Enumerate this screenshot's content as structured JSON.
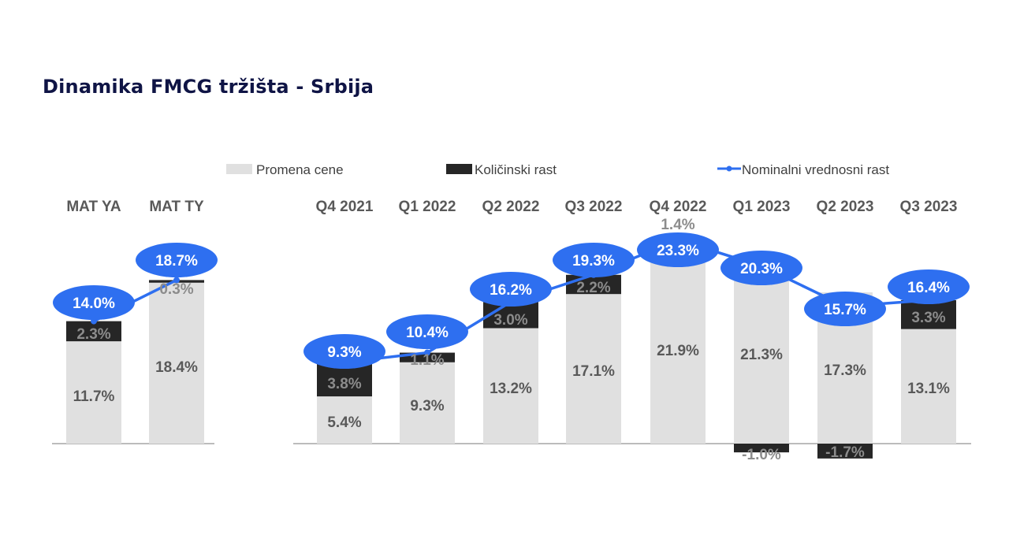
{
  "chart_data": {
    "type": "bar",
    "title": "Dinamika FMCG tržišta - Srbija",
    "xlabel": "",
    "ylabel": "",
    "stacked": true,
    "grid": false,
    "legend_position": "top",
    "categories": [
      "MAT YA",
      "MAT TY",
      "Q4 2021",
      "Q1 2022",
      "Q2 2022",
      "Q3 2022",
      "Q4 2022",
      "Q1 2023",
      "Q2 2023",
      "Q3 2023"
    ],
    "series": [
      {
        "name": "Promena cene",
        "kind": "bar",
        "color": "#e0e0e0",
        "values": [
          11.7,
          18.4,
          5.4,
          9.3,
          13.2,
          17.1,
          21.9,
          21.3,
          17.3,
          13.1
        ],
        "labels": [
          "11.7%",
          "18.4%",
          "5.4%",
          "9.3%",
          "13.2%",
          "17.1%",
          "21.9%",
          "21.3%",
          "17.3%",
          "13.1%"
        ]
      },
      {
        "name": "Količinski rast",
        "kind": "bar",
        "color": "#262626",
        "values": [
          2.3,
          0.3,
          3.8,
          1.1,
          3.0,
          2.2,
          1.4,
          -1.0,
          -1.7,
          3.3
        ],
        "labels": [
          "2.3%",
          "0.3%",
          "3.8%",
          "1.1%",
          "3.0%",
          "2.2%",
          "1.4%",
          "-1.0%",
          "-1.7%",
          "3.3%"
        ]
      },
      {
        "name": "Nominalni vrednosni rast",
        "kind": "line",
        "color": "#2e6ff0",
        "values": [
          14.0,
          18.7,
          9.3,
          10.4,
          16.2,
          19.3,
          23.3,
          20.3,
          15.7,
          16.4
        ],
        "labels": [
          "14.0%",
          "18.7%",
          "9.3%",
          "10.4%",
          "16.2%",
          "19.3%",
          "23.3%",
          "20.3%",
          "15.7%",
          "16.4%"
        ]
      }
    ],
    "line_segments": [
      [
        0,
        1
      ],
      [
        2,
        3,
        4,
        5,
        6,
        7,
        8,
        9
      ]
    ],
    "ylim": [
      -2,
      25
    ]
  },
  "colors": {
    "title": "#0f1445",
    "price": "#e0e0e0",
    "volume": "#262626",
    "line": "#2e6ff0",
    "axis": "#a6a6a6"
  }
}
